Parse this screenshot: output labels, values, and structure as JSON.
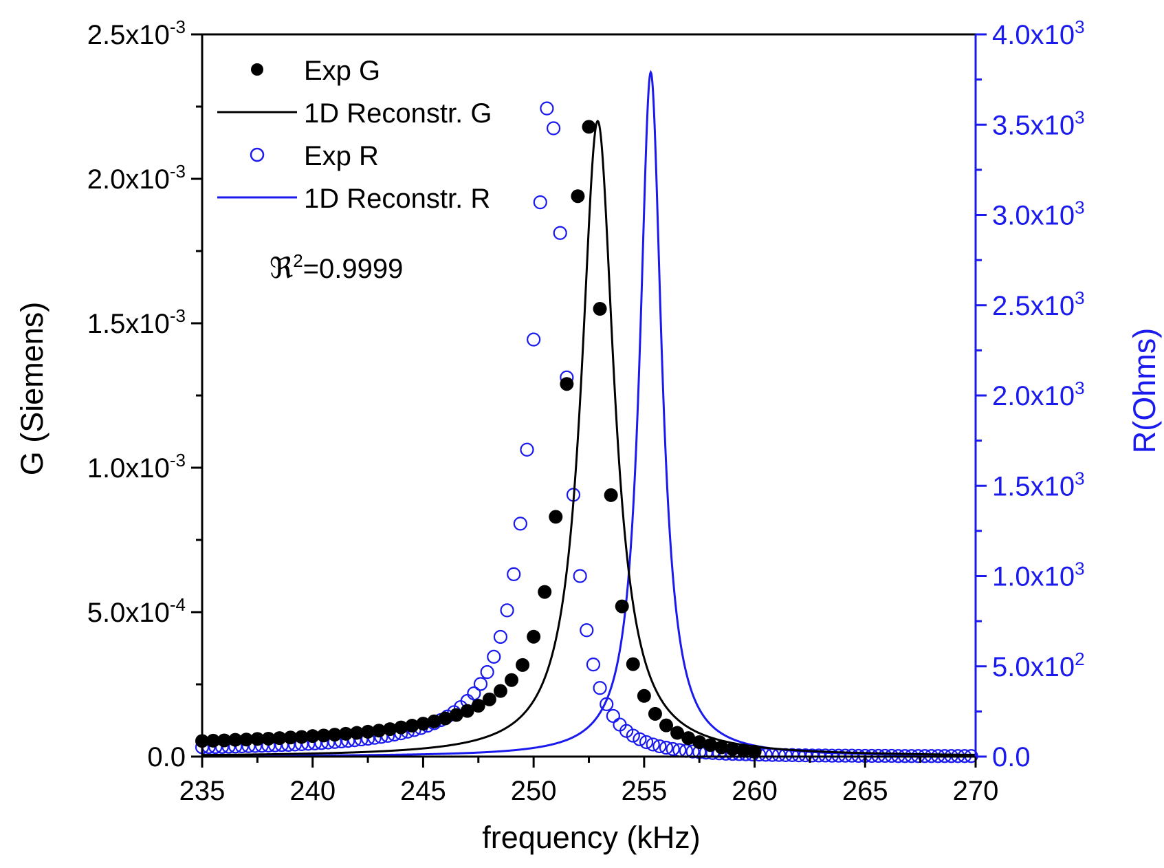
{
  "chart_data": {
    "type": "line",
    "x": {
      "label": "frequency (kHz)",
      "range": [
        235,
        270
      ],
      "ticks": [
        235,
        240,
        245,
        250,
        255,
        260,
        265,
        270
      ]
    },
    "y_left": {
      "label": "G (Siemens)",
      "range": [
        0,
        0.0025
      ],
      "ticks": [
        {
          "value": 0.0,
          "mant": "0.0",
          "exp": ""
        },
        {
          "value": 0.0005,
          "mant": "5.0x10",
          "exp": "-4"
        },
        {
          "value": 0.001,
          "mant": "1.0x10",
          "exp": "-3"
        },
        {
          "value": 0.0015,
          "mant": "1.5x10",
          "exp": "-3"
        },
        {
          "value": 0.002,
          "mant": "2.0x10",
          "exp": "-3"
        },
        {
          "value": 0.0025,
          "mant": "2.5x10",
          "exp": "-3"
        }
      ]
    },
    "y_right": {
      "label": "R(Ohms)",
      "range": [
        0,
        4000
      ],
      "ticks": [
        {
          "value": 0,
          "mant": "0.0",
          "exp": ""
        },
        {
          "value": 500,
          "mant": "5.0x10",
          "exp": "2"
        },
        {
          "value": 1000,
          "mant": "1.0x10",
          "exp": "3"
        },
        {
          "value": 1500,
          "mant": "1.5x10",
          "exp": "3"
        },
        {
          "value": 2000,
          "mant": "2.0x10",
          "exp": "3"
        },
        {
          "value": 2500,
          "mant": "2.5x10",
          "exp": "3"
        },
        {
          "value": 3000,
          "mant": "3.0x10",
          "exp": "3"
        },
        {
          "value": 3500,
          "mant": "3.5x10",
          "exp": "3"
        },
        {
          "value": 4000,
          "mant": "4.0x10",
          "exp": "3"
        }
      ]
    },
    "series": [
      {
        "name": "Exp G",
        "axis": "left",
        "style": "filled-circle",
        "color": "#000000",
        "x": [
          235.0,
          235.5,
          236.0,
          236.5,
          237.0,
          237.5,
          238.0,
          238.5,
          239.0,
          239.5,
          240.0,
          240.5,
          241.0,
          241.5,
          242.0,
          242.5,
          243.0,
          243.5,
          244.0,
          244.5,
          245.0,
          245.5,
          246.0,
          246.5,
          247.0,
          247.5,
          248.0,
          248.5,
          249.0,
          249.5,
          250.0,
          250.5,
          251.0,
          251.5,
          252.0,
          252.5,
          253.0,
          253.5,
          254.0,
          254.5,
          255.0,
          255.5,
          256.0,
          256.5,
          257.0,
          257.5,
          258.0,
          258.5,
          259.0,
          259.5,
          260.0
        ],
        "y": [
          5.4e-05,
          5.5e-05,
          5.6e-05,
          5.8e-05,
          5.9e-05,
          6.1e-05,
          6.2e-05,
          6.4e-05,
          6.6e-05,
          6.8e-05,
          7.1e-05,
          7.3e-05,
          7.6e-05,
          7.9e-05,
          8.2e-05,
          8.6e-05,
          9e-05,
          9.5e-05,
          0.000101,
          0.000107,
          0.000114,
          0.000122,
          0.000132,
          0.000144,
          0.000158,
          0.000176,
          0.000198,
          0.000227,
          0.000265,
          0.000317,
          0.000415,
          0.00057,
          0.00083,
          0.00129,
          0.00194,
          0.00218,
          0.00155,
          0.000905,
          0.00052,
          0.00032,
          0.00021,
          0.000148,
          0.000108,
          8.2e-05,
          6.4e-05,
          5e-05,
          4e-05,
          3.2e-05,
          2.6e-05,
          2.1e-05,
          1.7e-05
        ]
      },
      {
        "name": "1D Reconstr. G",
        "axis": "left",
        "style": "line",
        "color": "#000000",
        "model": {
          "type": "lorentzian",
          "center": 252.9,
          "peak": 0.0022,
          "hwhm": 0.9,
          "baseline": 0
        }
      },
      {
        "name": "Exp R",
        "axis": "right",
        "style": "open-circle",
        "color": "#1a1aee",
        "x": [
          235.0,
          235.3,
          235.6,
          235.9,
          236.2,
          236.5,
          236.8,
          237.1,
          237.4,
          237.7,
          238.0,
          238.3,
          238.6,
          238.9,
          239.2,
          239.5,
          239.8,
          240.1,
          240.4,
          240.7,
          241.0,
          241.3,
          241.6,
          241.9,
          242.2,
          242.5,
          242.8,
          243.1,
          243.4,
          243.7,
          244.0,
          244.3,
          244.6,
          244.9,
          245.2,
          245.5,
          245.8,
          246.1,
          246.4,
          246.7,
          247.0,
          247.3,
          247.6,
          247.9,
          248.2,
          248.5,
          248.8,
          249.1,
          249.4,
          249.7,
          250.0,
          250.3,
          250.6,
          250.9,
          251.2,
          251.5,
          251.8,
          252.1,
          252.4,
          252.7,
          253.0,
          253.3,
          253.6,
          253.9,
          254.2,
          254.5,
          254.8,
          255.1,
          255.4,
          255.7,
          256.0,
          256.3,
          256.6,
          256.9,
          257.2,
          257.5,
          257.8,
          258.1,
          258.4,
          258.7,
          259.0,
          259.3,
          259.6,
          259.9,
          260.2,
          260.5,
          260.8,
          261.1,
          261.4,
          261.7,
          262.0,
          262.3,
          262.6,
          262.9,
          263.2,
          263.5,
          263.8,
          264.1,
          264.4,
          264.7,
          265.0,
          265.3,
          265.6,
          265.9,
          266.2,
          266.5,
          266.8,
          267.1,
          267.4,
          267.7,
          268.0,
          268.3,
          268.6,
          268.9,
          269.2,
          269.5,
          269.8
        ],
        "y": [
          52,
          53,
          53,
          54,
          55,
          56,
          57,
          58,
          59,
          60,
          61,
          62,
          64,
          65,
          67,
          69,
          71,
          73,
          75,
          78,
          81,
          84,
          87,
          91,
          95,
          99,
          104,
          109,
          115,
          122,
          129,
          138,
          147,
          158,
          171,
          185,
          202,
          222,
          246,
          274,
          308,
          350,
          402,
          468,
          553,
          663,
          810,
          1010,
          1290,
          1700,
          2310,
          3070,
          3590,
          3480,
          2900,
          2100,
          1450,
          1000,
          700,
          510,
          380,
          290,
          225,
          177,
          142,
          116,
          96,
          80,
          67,
          57,
          49,
          42,
          36,
          32,
          28,
          25,
          22,
          20,
          18,
          16,
          15,
          14,
          13,
          12,
          11,
          10,
          9,
          9,
          8,
          8,
          7,
          7,
          6,
          6,
          6,
          5,
          5,
          5,
          5,
          4,
          4,
          4,
          4,
          4,
          4,
          3,
          3,
          3,
          3,
          3,
          3,
          3,
          3,
          3,
          3,
          3,
          3
        ],
        "fit": {
          "type": "lorentzian",
          "center": 255.3,
          "peak": 3760,
          "hwhm": 0.62,
          "baseline": 0
        }
      },
      {
        "name": "1D Reconstr. R",
        "axis": "right",
        "style": "line",
        "color": "#1a1aee",
        "model": {
          "type": "lorentzian",
          "center": 255.3,
          "peak": 3790,
          "hwhm": 0.6,
          "baseline": 0
        }
      }
    ],
    "legend": {
      "position": "top-left",
      "entries": [
        {
          "label": "Exp G",
          "marker": "filled-circle",
          "color": "#000000"
        },
        {
          "label": "1D Reconstr. G",
          "marker": "line",
          "color": "#000000"
        },
        {
          "label": "Exp R",
          "marker": "open-circle",
          "color": "#1a1aee"
        },
        {
          "label": "1D Reconstr. R",
          "marker": "line",
          "color": "#1a1aee"
        }
      ]
    },
    "annotation": {
      "symbol": "ℜ",
      "sup": "2",
      "text": "=0.9999"
    }
  }
}
